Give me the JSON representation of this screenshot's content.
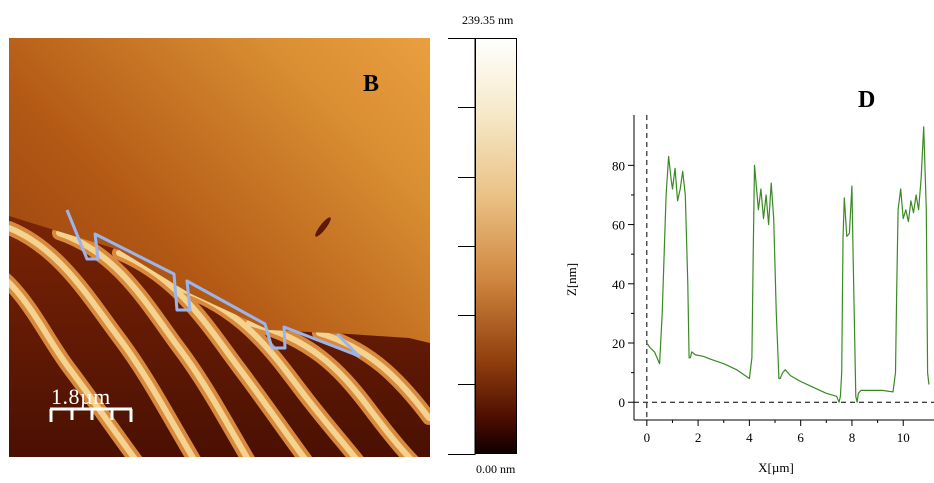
{
  "image_panel": {
    "label": "B",
    "scale_label": "1.8µm",
    "colorbar": {
      "max_label": "239.35 nm",
      "min_label": "0.00 nm"
    },
    "trace_color": "#9bb5ec"
  },
  "chart_data": {
    "type": "line",
    "panel_label": "D",
    "xlabel": "X[µm]",
    "ylabel": "Z[nm]",
    "xlim": [
      -0.5,
      11.2
    ],
    "ylim": [
      -6,
      97
    ],
    "xticks": [
      0,
      2,
      4,
      6,
      8,
      10
    ],
    "yticks": [
      0,
      20,
      40,
      60,
      80
    ],
    "reference_lines": {
      "x": 0,
      "y": 0,
      "style": "dashed"
    },
    "series": [
      {
        "color": "#3a8a24",
        "x": [
          0,
          0.12,
          0.3,
          0.5,
          0.6,
          0.75,
          0.85,
          0.95,
          1.0,
          1.1,
          1.2,
          1.3,
          1.4,
          1.5,
          1.6,
          1.65,
          1.7,
          1.75,
          1.9,
          2.2,
          2.5,
          3.0,
          3.5,
          4.0,
          4.1,
          4.15,
          4.2,
          4.25,
          4.35,
          4.45,
          4.55,
          4.65,
          4.75,
          4.85,
          4.95,
          5.05,
          5.15,
          5.2,
          5.3,
          5.4,
          5.6,
          6.0,
          6.5,
          7.0,
          7.4,
          7.5,
          7.55,
          7.6,
          7.65,
          7.7,
          7.8,
          7.9,
          8.0,
          8.05,
          8.15,
          8.2,
          8.25,
          8.35,
          8.4,
          8.5,
          8.8,
          9.2,
          9.6,
          9.7,
          9.75,
          9.8,
          9.9,
          10.0,
          10.1,
          10.2,
          10.3,
          10.4,
          10.5,
          10.6,
          10.7,
          10.8,
          10.9,
          10.95,
          11.0
        ],
        "y": [
          20,
          18.5,
          17,
          13,
          30,
          70,
          83,
          75,
          72,
          79,
          68,
          72,
          78,
          70,
          40,
          15,
          15,
          17,
          16,
          15.5,
          14.5,
          13,
          11,
          8,
          15,
          50,
          80,
          75,
          65,
          72,
          62,
          70,
          60,
          74,
          62,
          30,
          8,
          8,
          10,
          11,
          9,
          7,
          5,
          3,
          2,
          0,
          2,
          10,
          55,
          69,
          56,
          57,
          73,
          48,
          2,
          0,
          3,
          4,
          4,
          4,
          4,
          4,
          3.5,
          10,
          40,
          65,
          72,
          62,
          65,
          61,
          68,
          64,
          70,
          65,
          76,
          93,
          65,
          10,
          6
        ]
      }
    ]
  }
}
